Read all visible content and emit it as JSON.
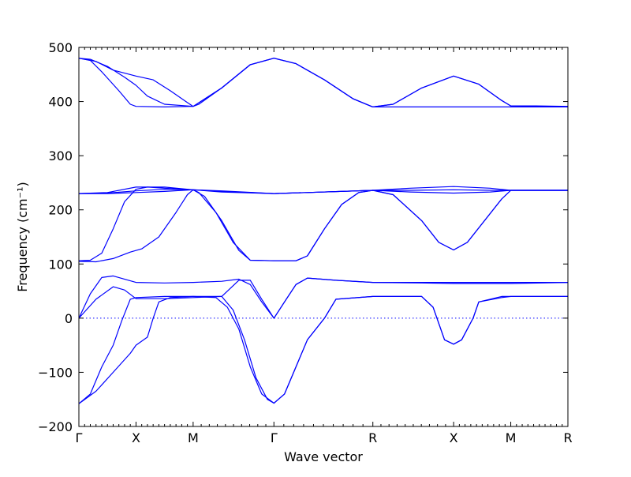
{
  "chart_data": {
    "type": "line",
    "xlabel": "Wave vector",
    "ylabel": "Frequency (cm⁻¹)",
    "ylim": [
      -200,
      500
    ],
    "y_ticks": [
      -200,
      -100,
      0,
      100,
      200,
      300,
      400,
      500
    ],
    "x_ticks": [
      {
        "label": "Γ",
        "x": 0
      },
      {
        "label": "X",
        "x": 0.1
      },
      {
        "label": "M",
        "x": 0.2
      },
      {
        "label": "Γ",
        "x": 0.3414
      },
      {
        "label": "R",
        "x": 0.5146
      },
      {
        "label": "X",
        "x": 0.656
      },
      {
        "label": "M",
        "x": 0.756
      },
      {
        "label": "R",
        "x": 0.856
      }
    ],
    "xlim": [
      0,
      0.856
    ],
    "grid": false,
    "zero_line": true,
    "line_color": "#0000ff",
    "series": [
      {
        "values": [
          [
            0,
            480
          ],
          [
            0.02,
            478
          ],
          [
            0.05,
            465
          ],
          [
            0.08,
            445
          ],
          [
            0.1,
            430
          ],
          [
            0.12,
            410
          ],
          [
            0.15,
            395
          ],
          [
            0.2,
            391
          ],
          [
            0.25,
            425
          ],
          [
            0.3,
            468
          ],
          [
            0.3414,
            480
          ],
          [
            0.38,
            470
          ],
          [
            0.43,
            440
          ],
          [
            0.48,
            405
          ],
          [
            0.5146,
            390
          ],
          [
            0.55,
            395
          ],
          [
            0.6,
            425
          ],
          [
            0.656,
            447
          ],
          [
            0.7,
            432
          ],
          [
            0.74,
            402
          ],
          [
            0.756,
            392
          ],
          [
            0.8,
            392
          ],
          [
            0.856,
            391
          ]
        ]
      },
      {
        "values": [
          [
            0,
            480
          ],
          [
            0.02,
            476
          ],
          [
            0.04,
            455
          ],
          [
            0.07,
            420
          ],
          [
            0.09,
            395
          ],
          [
            0.1,
            391
          ],
          [
            0.15,
            390
          ],
          [
            0.2,
            391
          ],
          [
            0.25,
            425
          ],
          [
            0.3,
            468
          ],
          [
            0.3414,
            480
          ],
          [
            0.38,
            470
          ],
          [
            0.43,
            440
          ],
          [
            0.48,
            405
          ],
          [
            0.5146,
            390
          ],
          [
            0.6,
            390
          ],
          [
            0.656,
            390
          ],
          [
            0.756,
            390
          ],
          [
            0.856,
            390
          ]
        ]
      },
      {
        "values": [
          [
            0,
            480
          ],
          [
            0.03,
            474
          ],
          [
            0.06,
            458
          ],
          [
            0.1,
            447
          ],
          [
            0.13,
            440
          ],
          [
            0.16,
            420
          ],
          [
            0.19,
            398
          ],
          [
            0.2,
            391
          ],
          [
            0.21,
            395
          ],
          [
            0.25,
            425
          ],
          [
            0.3,
            468
          ],
          [
            0.3414,
            480
          ],
          [
            0.38,
            470
          ],
          [
            0.43,
            440
          ],
          [
            0.48,
            405
          ],
          [
            0.5146,
            390
          ],
          [
            0.55,
            395
          ],
          [
            0.6,
            425
          ],
          [
            0.656,
            447
          ],
          [
            0.7,
            432
          ],
          [
            0.74,
            402
          ],
          [
            0.756,
            392
          ],
          [
            0.8,
            391
          ],
          [
            0.856,
            390
          ]
        ]
      },
      {
        "values": [
          [
            0,
            230
          ],
          [
            0.05,
            232
          ],
          [
            0.1,
            242
          ],
          [
            0.15,
            242
          ],
          [
            0.2,
            237
          ],
          [
            0.25,
            233
          ],
          [
            0.3414,
            230
          ],
          [
            0.4,
            232
          ],
          [
            0.5146,
            236
          ],
          [
            0.58,
            240
          ],
          [
            0.656,
            243
          ],
          [
            0.72,
            240
          ],
          [
            0.756,
            236
          ],
          [
            0.856,
            236
          ]
        ]
      },
      {
        "values": [
          [
            0,
            230
          ],
          [
            0.05,
            231
          ],
          [
            0.1,
            235
          ],
          [
            0.15,
            238
          ],
          [
            0.2,
            237
          ],
          [
            0.25,
            234
          ],
          [
            0.3414,
            230
          ],
          [
            0.4,
            232
          ],
          [
            0.5146,
            236
          ],
          [
            0.58,
            236
          ],
          [
            0.656,
            237
          ],
          [
            0.72,
            236
          ],
          [
            0.756,
            236
          ],
          [
            0.856,
            236
          ]
        ]
      },
      {
        "values": [
          [
            0,
            230
          ],
          [
            0.05,
            230
          ],
          [
            0.1,
            232
          ],
          [
            0.15,
            234
          ],
          [
            0.2,
            237
          ],
          [
            0.25,
            235
          ],
          [
            0.3414,
            230
          ],
          [
            0.4,
            232
          ],
          [
            0.5146,
            236
          ],
          [
            0.58,
            233
          ],
          [
            0.656,
            231
          ],
          [
            0.72,
            233
          ],
          [
            0.756,
            236
          ],
          [
            0.856,
            236
          ]
        ]
      },
      {
        "values": [
          [
            0,
            106
          ],
          [
            0.02,
            107
          ],
          [
            0.04,
            120
          ],
          [
            0.06,
            165
          ],
          [
            0.08,
            215
          ],
          [
            0.1,
            238
          ],
          [
            0.12,
            242
          ],
          [
            0.15,
            240
          ],
          [
            0.2,
            237
          ],
          [
            0.22,
            225
          ],
          [
            0.25,
            180
          ],
          [
            0.28,
            125
          ],
          [
            0.3,
            107
          ],
          [
            0.3414,
            106
          ],
          [
            0.38,
            106
          ],
          [
            0.4,
            115
          ],
          [
            0.43,
            165
          ],
          [
            0.46,
            210
          ],
          [
            0.49,
            232
          ],
          [
            0.5146,
            236
          ],
          [
            0.55,
            228
          ],
          [
            0.6,
            180
          ],
          [
            0.63,
            140
          ],
          [
            0.656,
            126
          ],
          [
            0.68,
            140
          ],
          [
            0.71,
            180
          ],
          [
            0.74,
            220
          ],
          [
            0.756,
            236
          ],
          [
            0.856,
            236
          ]
        ]
      },
      {
        "values": [
          [
            0,
            105
          ],
          [
            0.03,
            104
          ],
          [
            0.06,
            110
          ],
          [
            0.09,
            122
          ],
          [
            0.11,
            128
          ],
          [
            0.14,
            150
          ],
          [
            0.17,
            195
          ],
          [
            0.19,
            228
          ],
          [
            0.2,
            237
          ],
          [
            0.21,
            232
          ],
          [
            0.24,
            195
          ],
          [
            0.27,
            140
          ],
          [
            0.3,
            107
          ],
          [
            0.3414,
            106
          ],
          [
            0.38,
            106
          ],
          [
            0.4,
            115
          ],
          [
            0.43,
            165
          ],
          [
            0.46,
            210
          ],
          [
            0.49,
            232
          ],
          [
            0.5146,
            236
          ],
          [
            0.55,
            228
          ],
          [
            0.6,
            180
          ],
          [
            0.63,
            140
          ],
          [
            0.656,
            126
          ],
          [
            0.68,
            140
          ],
          [
            0.71,
            180
          ],
          [
            0.74,
            220
          ],
          [
            0.756,
            236
          ],
          [
            0.856,
            236
          ]
        ]
      },
      {
        "values": [
          [
            0,
            0
          ],
          [
            0.02,
            45
          ],
          [
            0.04,
            75
          ],
          [
            0.06,
            78
          ],
          [
            0.1,
            66
          ],
          [
            0.15,
            65
          ],
          [
            0.2,
            66
          ],
          [
            0.25,
            68
          ],
          [
            0.28,
            72
          ],
          [
            0.3,
            62
          ],
          [
            0.32,
            30
          ],
          [
            0.3414,
            0
          ],
          [
            0.36,
            30
          ],
          [
            0.38,
            62
          ],
          [
            0.4,
            74
          ],
          [
            0.45,
            70
          ],
          [
            0.5146,
            66
          ],
          [
            0.6,
            65
          ],
          [
            0.656,
            64
          ],
          [
            0.756,
            64
          ],
          [
            0.856,
            66
          ]
        ]
      },
      {
        "values": [
          [
            0,
            0
          ],
          [
            0.03,
            35
          ],
          [
            0.06,
            58
          ],
          [
            0.08,
            52
          ],
          [
            0.1,
            36
          ],
          [
            0.15,
            36
          ],
          [
            0.2,
            38
          ],
          [
            0.25,
            40
          ],
          [
            0.28,
            70
          ],
          [
            0.3,
            70
          ],
          [
            0.32,
            35
          ],
          [
            0.3414,
            0
          ],
          [
            0.36,
            30
          ],
          [
            0.38,
            62
          ],
          [
            0.4,
            74
          ],
          [
            0.45,
            70
          ],
          [
            0.5146,
            66
          ],
          [
            0.6,
            66
          ],
          [
            0.656,
            66
          ],
          [
            0.756,
            66
          ],
          [
            0.856,
            66
          ]
        ]
      },
      {
        "values": [
          [
            0,
            -158
          ],
          [
            0.02,
            -140
          ],
          [
            0.04,
            -90
          ],
          [
            0.06,
            -50
          ],
          [
            0.075,
            -5
          ],
          [
            0.09,
            35
          ],
          [
            0.1,
            38
          ],
          [
            0.15,
            40
          ],
          [
            0.2,
            40
          ],
          [
            0.24,
            38
          ],
          [
            0.26,
            20
          ],
          [
            0.28,
            -20
          ],
          [
            0.3,
            -90
          ],
          [
            0.32,
            -140
          ],
          [
            0.3414,
            -157
          ],
          [
            0.36,
            -140
          ],
          [
            0.38,
            -90
          ],
          [
            0.4,
            -40
          ],
          [
            0.43,
            0
          ],
          [
            0.45,
            35
          ],
          [
            0.5146,
            40
          ],
          [
            0.6,
            40
          ],
          [
            0.62,
            20
          ],
          [
            0.64,
            -40
          ],
          [
            0.656,
            -48
          ],
          [
            0.67,
            -40
          ],
          [
            0.69,
            0
          ],
          [
            0.7,
            30
          ],
          [
            0.74,
            38
          ],
          [
            0.756,
            40
          ],
          [
            0.856,
            40
          ]
        ]
      },
      {
        "values": [
          [
            0,
            -158
          ],
          [
            0.03,
            -135
          ],
          [
            0.06,
            -100
          ],
          [
            0.09,
            -65
          ],
          [
            0.1,
            -50
          ],
          [
            0.12,
            -35
          ],
          [
            0.13,
            0
          ],
          [
            0.14,
            30
          ],
          [
            0.16,
            38
          ],
          [
            0.2,
            40
          ],
          [
            0.25,
            40
          ],
          [
            0.27,
            15
          ],
          [
            0.29,
            -40
          ],
          [
            0.31,
            -110
          ],
          [
            0.33,
            -150
          ],
          [
            0.3414,
            -157
          ],
          [
            0.36,
            -140
          ],
          [
            0.38,
            -90
          ],
          [
            0.4,
            -40
          ],
          [
            0.43,
            0
          ],
          [
            0.45,
            35
          ],
          [
            0.5146,
            40
          ],
          [
            0.6,
            40
          ],
          [
            0.62,
            20
          ],
          [
            0.64,
            -40
          ],
          [
            0.656,
            -48
          ],
          [
            0.67,
            -40
          ],
          [
            0.69,
            0
          ],
          [
            0.7,
            30
          ],
          [
            0.74,
            40
          ],
          [
            0.756,
            40
          ],
          [
            0.856,
            40
          ]
        ]
      }
    ]
  }
}
